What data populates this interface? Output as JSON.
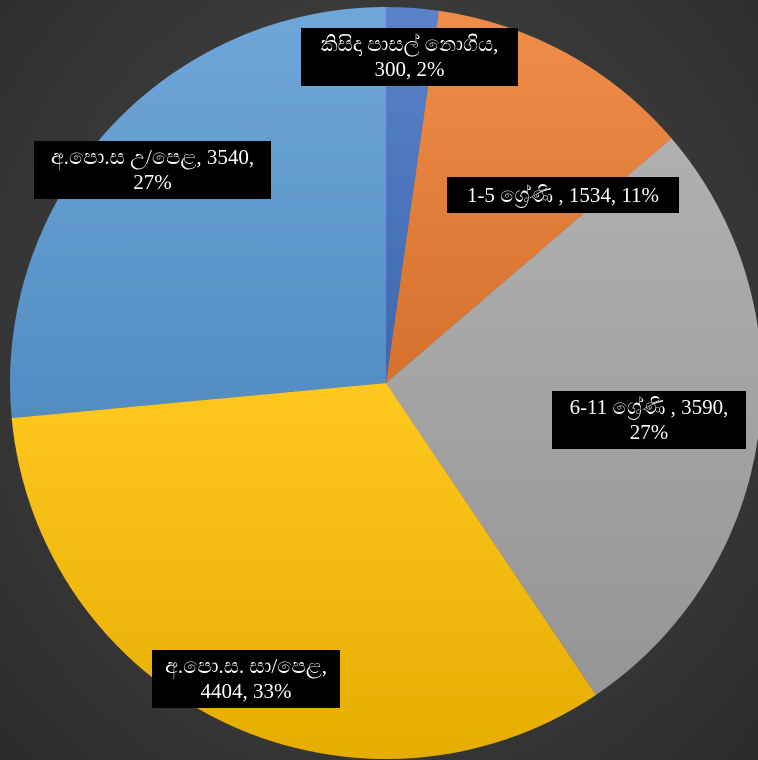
{
  "chart_data": {
    "type": "pie",
    "title": "",
    "start_angle_deg": 0,
    "direction": "clockwise",
    "legend": "none",
    "slices": [
      {
        "name": "කිසිදා පාසල් නොගිය",
        "value": 300,
        "percent": "2%",
        "color": "#4472c4",
        "label_line1": "කිසිදා පාසල් නොගිය,",
        "label_line2": "300, 2%"
      },
      {
        "name": "1-5 ශ්‍රේණි ",
        "value": 1534,
        "percent": "11%",
        "color": "#ed7d31",
        "label_line1": "1-5 ශ්‍රේණි , 1534, 11%",
        "label_line2": ""
      },
      {
        "name": "6-11 ශ්‍රේණි ",
        "value": 3590,
        "percent": "27%",
        "color": "#a5a5a5",
        "label_line1": "6-11 ශ්‍රේණි , 3590,",
        "label_line2": "27%"
      },
      {
        "name": "අ.පො.ස. සා/පෙළ",
        "value": 4404,
        "percent": "33%",
        "color": "#ffc000",
        "label_line1": "අ.පො.ස. සා/පෙළ,",
        "label_line2": "4404, 33%"
      },
      {
        "name": "අ.පො.ස උ/පෙළ",
        "value": 3540,
        "percent": "27%",
        "color": "#5b9bd5",
        "label_line1": "අ.පො.ස උ/පෙළ, 3540,",
        "label_line2": "27%"
      }
    ]
  }
}
